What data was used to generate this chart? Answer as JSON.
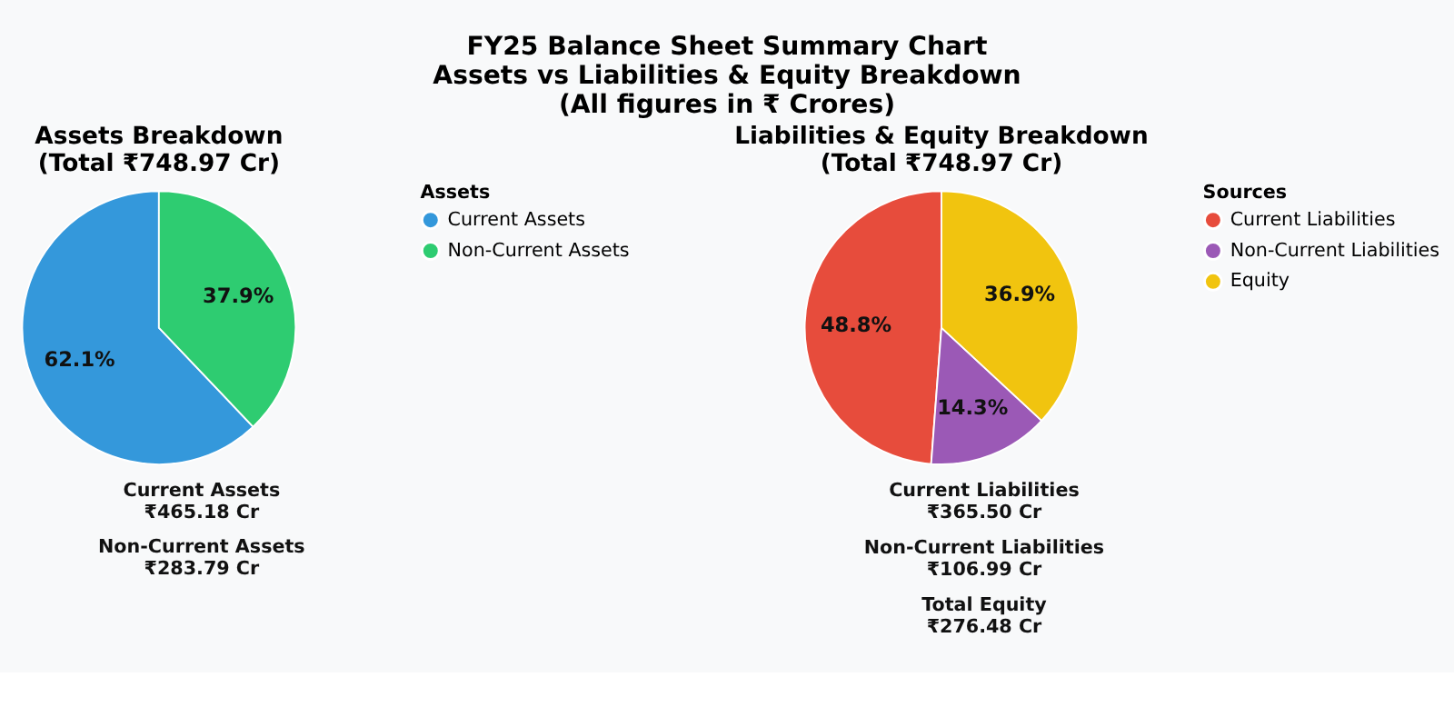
{
  "chart_data": [
    {
      "type": "pie",
      "title": "Assets Breakdown",
      "subtitle": "(Total ₹748.97 Cr)",
      "legend_title": "Assets",
      "legend": "right",
      "categories": [
        "Current Assets",
        "Non-Current Assets"
      ],
      "values": [
        62.1,
        37.9
      ],
      "colors": [
        "#3498db",
        "#2ecc71"
      ],
      "value_labels": [
        "62.1%",
        "37.9%"
      ],
      "annotations": [
        "FY25 Balance Sheet Summary Chart\nAssets vs Liabilities & Equity Breakdown\n(All figures in ₹ Crores)",
        "Current Assets\n₹465.18 Cr",
        "Non-Current Assets\n₹283.79 Cr"
      ]
    },
    {
      "type": "pie",
      "title": "Liabilities & Equity Breakdown",
      "subtitle": "(Total ₹748.97 Cr)",
      "legend_title": "Sources",
      "legend": "right",
      "categories": [
        "Current Liabilities",
        "Non-Current Liabilities",
        "Equity"
      ],
      "values": [
        48.8,
        14.3,
        36.9
      ],
      "colors": [
        "#e74c3c",
        "#9b59b6",
        "#f1c40f"
      ],
      "value_labels": [
        "48.8%",
        "14.3%",
        "36.9%"
      ],
      "annotations": [
        "Current Liabilities\n₹365.50 Cr",
        "Non-Current Liabilities\n₹106.99 Cr",
        "Total Equity\n₹276.48 Cr"
      ]
    }
  ]
}
